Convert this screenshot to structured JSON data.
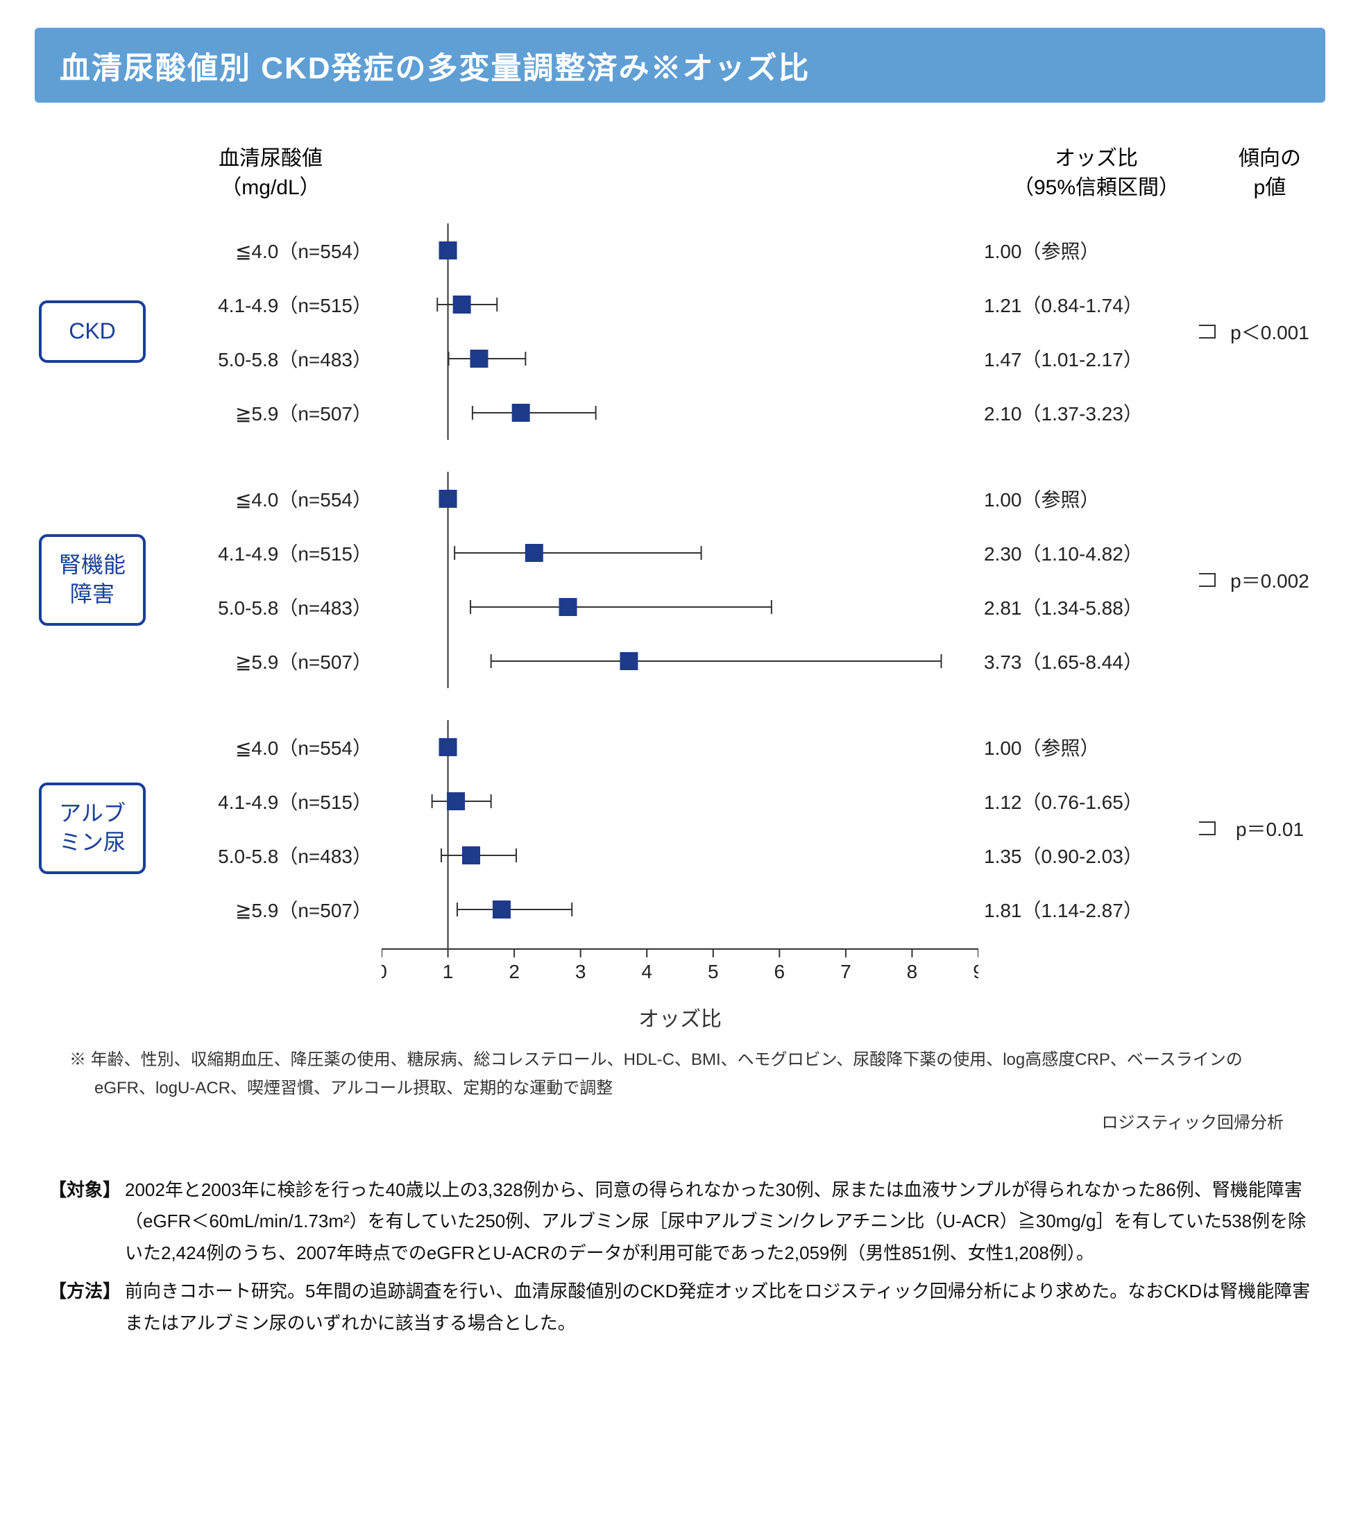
{
  "title": "血清尿酸値別 CKD発症の多変量調整済み※オッズ比",
  "column_headers": {
    "left_line1": "血清尿酸値",
    "left_line2": "（mg/dL）",
    "or_line1": "オッズ比",
    "or_line2": "（95%信頼区間）",
    "p_line1": "傾向の",
    "p_line2": "p値"
  },
  "axis": {
    "label": "オッズ比",
    "min": 0,
    "max": 9,
    "tick_step": 1,
    "ref_line": 1,
    "tick_fontsize": 28
  },
  "style": {
    "marker_color": "#1e3a8a",
    "marker_size": 26,
    "ci_line_color": "#333333",
    "ci_line_width": 2,
    "axis_color": "#333333",
    "axis_width": 2,
    "group_box_border": "#1a3f99",
    "title_bg": "#5f9fd4",
    "title_fg": "#ffffff"
  },
  "groups": [
    {
      "name": "CKD",
      "tag_lines": [
        "CKD"
      ],
      "p_value": "p＜0.001",
      "rows": [
        {
          "label": "≦4.0（n=554）",
          "or": 1.0,
          "lo": 1.0,
          "hi": 1.0,
          "or_text": "1.00（参照）"
        },
        {
          "label": "4.1-4.9（n=515）",
          "or": 1.21,
          "lo": 0.84,
          "hi": 1.74,
          "or_text": "1.21（0.84-1.74）"
        },
        {
          "label": "5.0-5.8（n=483）",
          "or": 1.47,
          "lo": 1.01,
          "hi": 2.17,
          "or_text": "1.47（1.01-2.17）"
        },
        {
          "label": "≧5.9（n=507）",
          "or": 2.1,
          "lo": 1.37,
          "hi": 3.23,
          "or_text": "2.10（1.37-3.23）"
        }
      ]
    },
    {
      "name": "腎機能障害",
      "tag_lines": [
        "腎機能",
        "障害"
      ],
      "p_value": "p＝0.002",
      "rows": [
        {
          "label": "≦4.0（n=554）",
          "or": 1.0,
          "lo": 1.0,
          "hi": 1.0,
          "or_text": "1.00（参照）"
        },
        {
          "label": "4.1-4.9（n=515）",
          "or": 2.3,
          "lo": 1.1,
          "hi": 4.82,
          "or_text": "2.30（1.10-4.82）"
        },
        {
          "label": "5.0-5.8（n=483）",
          "or": 2.81,
          "lo": 1.34,
          "hi": 5.88,
          "or_text": "2.81（1.34-5.88）"
        },
        {
          "label": "≧5.9（n=507）",
          "or": 3.73,
          "lo": 1.65,
          "hi": 8.44,
          "or_text": "3.73（1.65-8.44）"
        }
      ]
    },
    {
      "name": "アルブミン尿",
      "tag_lines": [
        "アルブ",
        "ミン尿"
      ],
      "p_value": "p＝0.01",
      "rows": [
        {
          "label": "≦4.0（n=554）",
          "or": 1.0,
          "lo": 1.0,
          "hi": 1.0,
          "or_text": "1.00（参照）"
        },
        {
          "label": "4.1-4.9（n=515）",
          "or": 1.12,
          "lo": 0.76,
          "hi": 1.65,
          "or_text": "1.12（0.76-1.65）"
        },
        {
          "label": "5.0-5.8（n=483）",
          "or": 1.35,
          "lo": 0.9,
          "hi": 2.03,
          "or_text": "1.35（0.90-2.03）"
        },
        {
          "label": "≧5.9（n=507）",
          "or": 1.81,
          "lo": 1.14,
          "hi": 2.87,
          "or_text": "1.81（1.14-2.87）"
        }
      ]
    }
  ],
  "footnote": "※ 年齢、性別、収縮期血圧、降圧薬の使用、糖尿病、総コレステロール、HDL-C、BMI、ヘモグロビン、尿酸降下薬の使用、log高感度CRP、ベースラインのeGFR、logU-ACR、喫煙習慣、アルコール摂取、定期的な運動で調整",
  "subnote": "ロジスティック回帰分析",
  "description": [
    {
      "label": "【対象】",
      "text": "2002年と2003年に検診を行った40歳以上の3,328例から、同意の得られなかった30例、尿または血液サンプルが得られなかった86例、腎機能障害（eGFR＜60mL/min/1.73m²）を有していた250例、アルブミン尿［尿中アルブミン/クレアチニン比（U-ACR）≧30mg/g］を有していた538例を除いた2,424例のうち、2007年時点でのeGFRとU-ACRのデータが利用可能であった2,059例（男性851例、女性1,208例）。"
    },
    {
      "label": "【方法】",
      "text": "前向きコホート研究。5年間の追跡調査を行い、血清尿酸値別のCKD発症オッズ比をロジスティック回帰分析により求めた。なおCKDは腎機能障害またはアルブミン尿のいずれかに該当する場合とした。"
    }
  ]
}
